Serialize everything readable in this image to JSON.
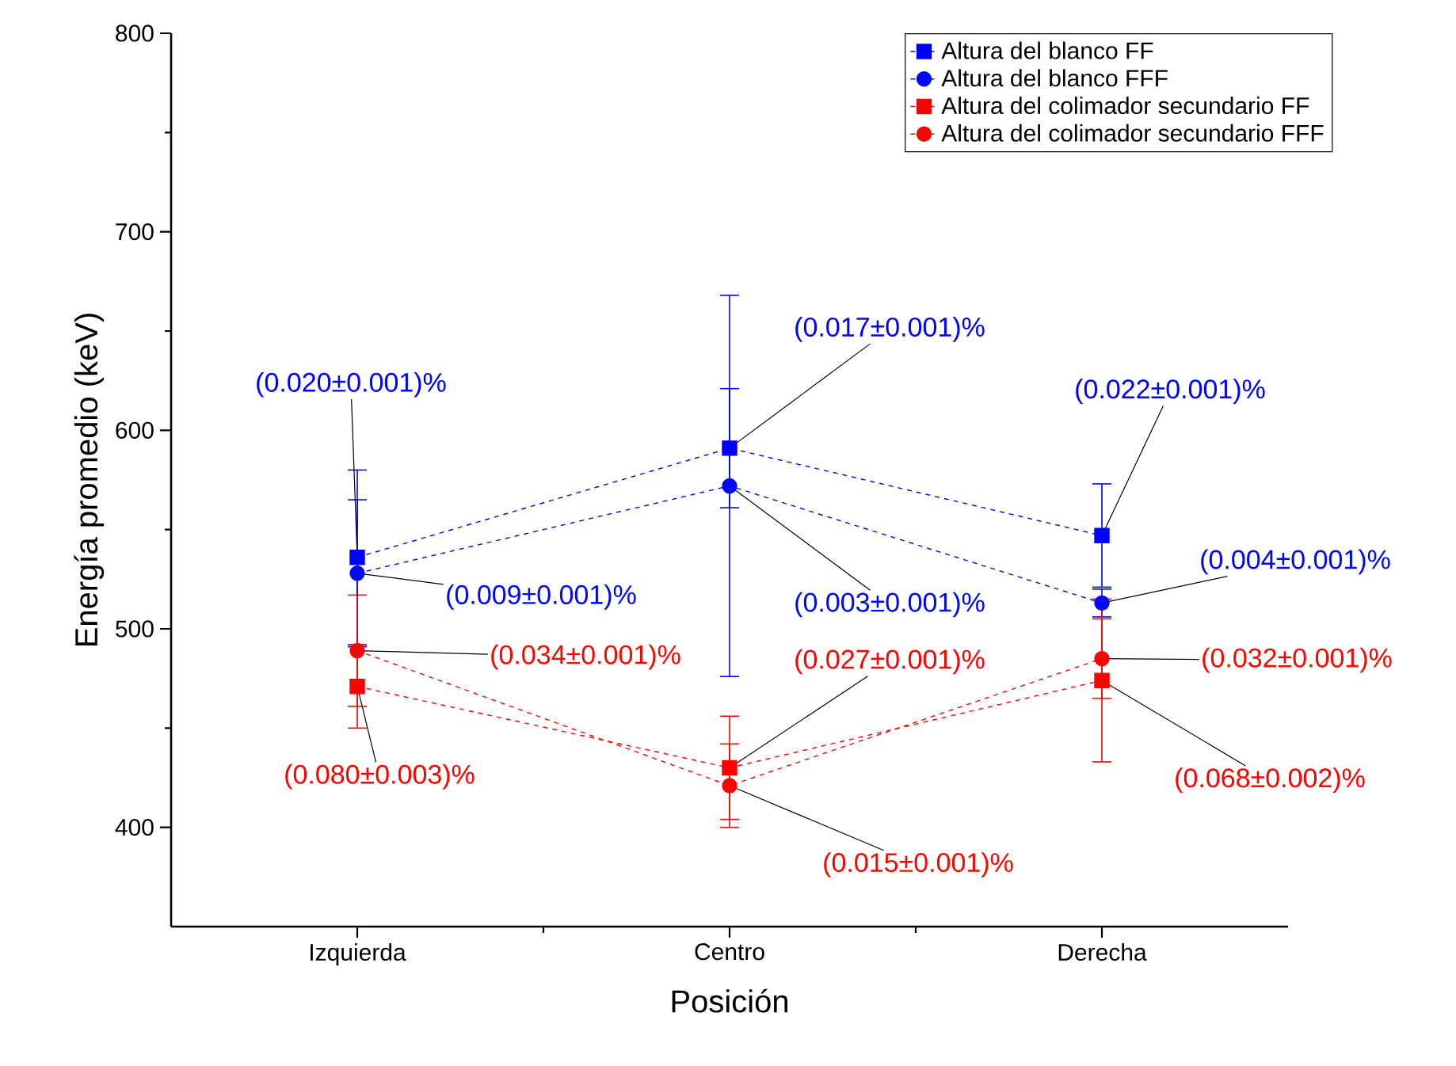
{
  "chart_data": {
    "type": "line",
    "xlabel": "Posición",
    "ylabel": "Energía promedio (keV)",
    "categories": [
      "Izquierda",
      "Centro",
      "Derecha"
    ],
    "ylim": [
      350,
      800
    ],
    "yticks": [
      400,
      500,
      600,
      700,
      800
    ],
    "legend": "top right",
    "line_style": "dashed",
    "grid": false,
    "series": [
      {
        "name": "Altura del blanco FF",
        "color": "#0000ff",
        "marker": "square",
        "values": [
          536,
          591,
          547
        ],
        "errors": [
          44,
          30,
          26
        ]
      },
      {
        "name": "Altura del blanco FFF",
        "color": "#0008f4",
        "marker": "circle",
        "values": [
          528,
          572,
          513
        ],
        "errors": [
          37,
          96,
          7
        ]
      },
      {
        "name": "Altura del colimador secundario FF",
        "color": "#ff0000",
        "marker": "square",
        "values": [
          471,
          430,
          474
        ],
        "errors": [
          21,
          26,
          41
        ]
      },
      {
        "name": "Altura del colimador secundario FFF",
        "color": "#f40800",
        "marker": "circle",
        "values": [
          489,
          421,
          485
        ],
        "errors": [
          28,
          21,
          20
        ]
      }
    ],
    "annotations": [
      {
        "text": "(0.020±0.001)%",
        "x": "Izquierda",
        "y": 536
      },
      {
        "text": "(0.009±0.001)%",
        "x": "Izquierda",
        "y": 528
      },
      {
        "text": "(0.034±0.001)%",
        "x": "Izquierda",
        "y": 489
      },
      {
        "text": "(0.080±0.003)%",
        "x": "Izquierda",
        "y": 471
      },
      {
        "text": "(0.017±0.001)%",
        "x": "Centro",
        "y": 591
      },
      {
        "text": "(0.003±0.001)%",
        "x": "Centro",
        "y": 572
      },
      {
        "text": "(0.027±0.001)%",
        "x": "Centro",
        "y": 430
      },
      {
        "text": "(0.015±0.001)%",
        "x": "Centro",
        "y": 421
      },
      {
        "text": "(0.022±0.001)%",
        "x": "Derecha",
        "y": 547
      },
      {
        "text": "(0.004±0.001)%",
        "x": "Derecha",
        "y": 513
      },
      {
        "text": "(0.032±0.001)%",
        "x": "Derecha",
        "y": 485
      },
      {
        "text": "(0.068±0.002)%",
        "x": "Derecha",
        "y": 474
      }
    ]
  }
}
